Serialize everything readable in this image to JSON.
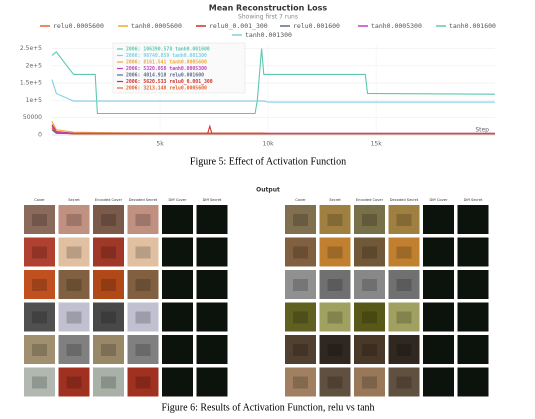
{
  "chart_data": {
    "type": "line",
    "title": "Mean Reconstruction Loss",
    "subtitle": "Showing first 7 runs",
    "x_label": "Step",
    "x": [
      0,
      200,
      1000,
      2000,
      2100,
      5000,
      7200,
      7300,
      7400,
      9400,
      9500,
      9700,
      9800,
      10000,
      14500,
      14600,
      20500
    ],
    "series": [
      {
        "name": "relu0.0005600",
        "color": "#e8602c",
        "values": [
          20000,
          6000,
          3000,
          3000,
          3000,
          3000,
          3000,
          3000,
          3000,
          3000,
          3000,
          3000,
          3000,
          3000,
          3000,
          3000,
          3000
        ]
      },
      {
        "name": "tanh0.0005600",
        "color": "#f0a830",
        "values": [
          40000,
          15000,
          8000,
          7000,
          7000,
          6000,
          6000,
          6000,
          6000,
          6000,
          6000,
          6000,
          6000,
          5000,
          5000,
          5000,
          5000
        ]
      },
      {
        "name": "relu0_0.001_300",
        "color": "#d0302a",
        "values": [
          30000,
          10000,
          5000,
          4000,
          4000,
          4000,
          4000,
          25000,
          4000,
          4000,
          4000,
          4000,
          4000,
          4000,
          4000,
          4000,
          4000
        ]
      },
      {
        "name": "relu0.001600",
        "color": "#5a6b8c",
        "values": [
          15000,
          5000,
          4000,
          4000,
          4000,
          4000,
          4000,
          4000,
          4000,
          4000,
          4000,
          4000,
          4000,
          4000,
          4000,
          4000,
          4000
        ]
      },
      {
        "name": "tanh0.0005300",
        "color": "#c040c0",
        "values": [
          25000,
          8000,
          5000,
          5000,
          5000,
          5000,
          5000,
          5000,
          5000,
          5000,
          5000,
          5000,
          5000,
          5000,
          5000,
          5000,
          5000
        ]
      },
      {
        "name": "tanh0.001600",
        "color": "#5cc8b0",
        "values": [
          230000,
          240000,
          175000,
          175000,
          62000,
          62000,
          62000,
          62000,
          62000,
          62000,
          100000,
          250000,
          175000,
          175000,
          175000,
          120000,
          118000
        ]
      },
      {
        "name": "tanh0.001300",
        "color": "#7fd0e8",
        "values": [
          160000,
          120000,
          98000,
          98000,
          98000,
          98000,
          98000,
          98000,
          98000,
          98000,
          98000,
          98000,
          98000,
          95000,
          95000,
          95000,
          95000
        ]
      }
    ],
    "xlim": [
      0,
      20500
    ],
    "ylim": [
      0,
      260000
    ],
    "xticks": [
      {
        "value": 5000,
        "label": "5k"
      },
      {
        "value": 10000,
        "label": "10k"
      },
      {
        "value": 15000,
        "label": "15k"
      }
    ],
    "yticks": [
      0,
      50000,
      {
        "value": 100000,
        "label": "1e+5"
      },
      {
        "value": 150000,
        "label": "1.5e+5"
      },
      {
        "value": 200000,
        "label": "2e+5"
      },
      {
        "value": 250000,
        "label": "2.5e+5"
      }
    ],
    "grid": true,
    "tooltip": [
      "2006: 106390.578 tanh0.001600",
      "2006: 98740.859 tanh0.001300",
      "2006: 8161.541 tanh0.0005600",
      "2006: 5320.058 tanh0.0005300",
      "2006: 4014.918 relu0.001600",
      "2006: 5620.533 relu0_0.001_300",
      "2006: 3213.148 relu0.0005600"
    ]
  },
  "figure5_caption": "Figure 5: Effect of Activation Function",
  "figure6": {
    "title": "Output",
    "headers": [
      "Cover",
      "Secret",
      "Encoded Cover",
      "Decoded Secret",
      "Diff Cover",
      "Diff Secret"
    ],
    "caption": "Figure 6: Results of Activation Function, relu vs tanh"
  }
}
